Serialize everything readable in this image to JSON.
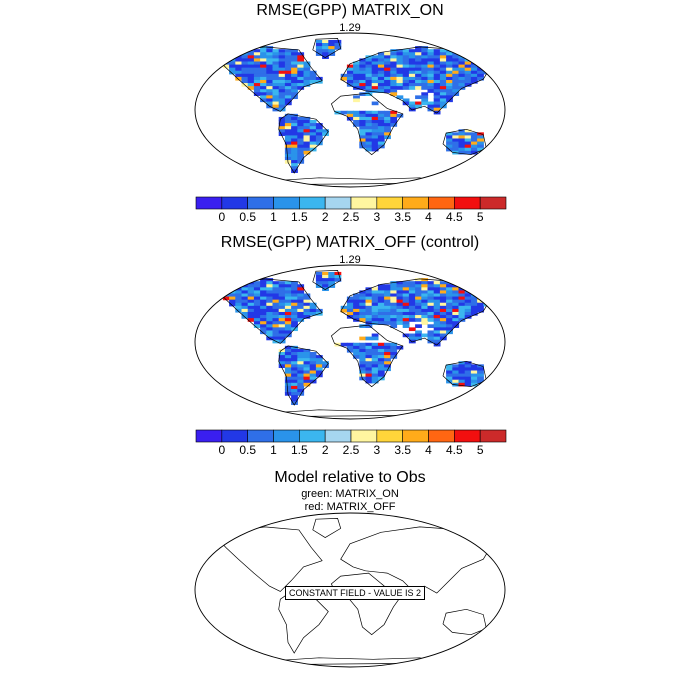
{
  "panels": [
    {
      "title": "RMSE(GPP) MATRIX_ON",
      "subtitle": "1.29",
      "has_colorbar": true,
      "seed": 11
    },
    {
      "title": "RMSE(GPP) MATRIX_OFF (control)",
      "subtitle": "1.29",
      "has_colorbar": true,
      "seed": 29
    },
    {
      "title": "Model relative to Obs",
      "subtitle_lines": [
        "green: MATRIX_ON",
        "red: MATRIX_OFF"
      ],
      "has_colorbar": false,
      "note": "CONSTANT FIELD - VALUE IS 2"
    }
  ],
  "colorbar": {
    "labels": [
      "0",
      "0.5",
      "1",
      "1.5",
      "2",
      "2.5",
      "3",
      "3.5",
      "4",
      "4.5",
      "5"
    ],
    "colors": [
      "#3a1ff0",
      "#2238e6",
      "#2f6fe8",
      "#2a93ea",
      "#3bb6ef",
      "#a6d6f0",
      "#fff6a0",
      "#ffd53a",
      "#ffab1a",
      "#ff6612",
      "#f20f0f",
      "#cc2a2a"
    ]
  }
}
